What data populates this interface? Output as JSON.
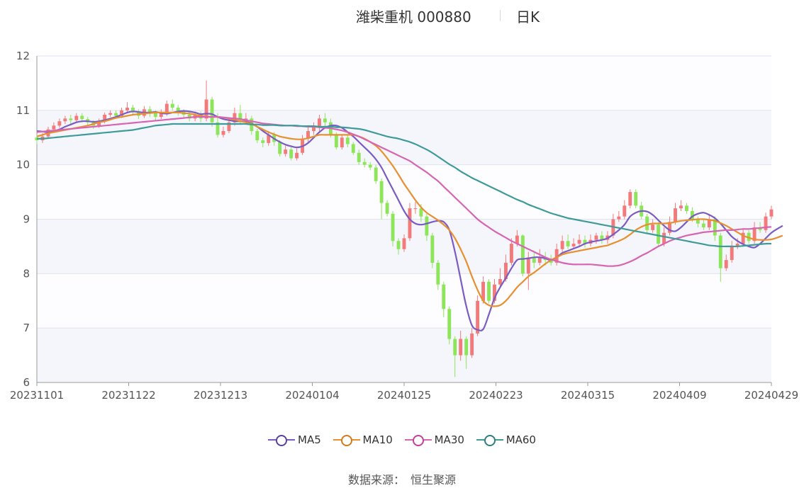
{
  "header": {
    "title": "潍柴重机 000880",
    "period": "日K"
  },
  "colors": {
    "up": "#f37a7a",
    "down": "#8de55a",
    "ma5": "#7a5cc2",
    "ma10": "#e8902f",
    "ma30": "#d765b1",
    "ma60": "#3f9a9a"
  },
  "chart_data": {
    "type": "candlestick",
    "title": "潍柴重机 000880",
    "x_tick_labels": [
      "20231101",
      "20231122",
      "20231213",
      "20240104",
      "20240125",
      "20240223",
      "20240315",
      "20240409",
      "20240429"
    ],
    "y_ticks": [
      6,
      7,
      8,
      9,
      10,
      11,
      12
    ],
    "ylim": [
      6,
      12
    ],
    "grid": true,
    "legend_position": "bottom",
    "candles": [
      [
        10.5,
        10.45,
        10.55,
        10.38
      ],
      [
        10.45,
        10.52,
        10.58,
        10.4
      ],
      [
        10.52,
        10.65,
        10.7,
        10.5
      ],
      [
        10.65,
        10.72,
        10.78,
        10.6
      ],
      [
        10.72,
        10.8,
        10.85,
        10.68
      ],
      [
        10.8,
        10.85,
        10.9,
        10.75
      ],
      [
        10.85,
        10.82,
        10.92,
        10.75
      ],
      [
        10.82,
        10.9,
        10.95,
        10.78
      ],
      [
        10.9,
        10.84,
        10.95,
        10.78
      ],
      [
        10.84,
        10.78,
        10.88,
        10.72
      ],
      [
        10.78,
        10.72,
        10.82,
        10.66
      ],
      [
        10.72,
        10.8,
        10.85,
        10.68
      ],
      [
        10.8,
        10.92,
        10.96,
        10.76
      ],
      [
        10.92,
        10.95,
        11.0,
        10.88
      ],
      [
        10.95,
        10.9,
        11.0,
        10.85
      ],
      [
        10.9,
        11.0,
        11.05,
        10.86
      ],
      [
        11.0,
        11.05,
        11.15,
        10.96
      ],
      [
        11.05,
        10.98,
        11.1,
        10.92
      ],
      [
        10.98,
        10.9,
        11.02,
        10.84
      ],
      [
        10.9,
        11.02,
        11.08,
        10.86
      ],
      [
        11.02,
        10.95,
        11.08,
        10.88
      ],
      [
        10.95,
        10.88,
        11.0,
        10.82
      ],
      [
        10.88,
        10.95,
        11.02,
        10.84
      ],
      [
        10.95,
        11.12,
        11.18,
        10.9
      ],
      [
        11.12,
        11.05,
        11.2,
        11.0
      ],
      [
        11.05,
        10.98,
        11.1,
        10.9
      ],
      [
        10.98,
        10.92,
        11.02,
        10.85
      ],
      [
        10.92,
        10.85,
        10.98,
        10.8
      ],
      [
        10.85,
        10.92,
        10.98,
        10.8
      ],
      [
        10.92,
        10.85,
        10.98,
        10.78
      ],
      [
        10.85,
        11.2,
        11.55,
        10.8
      ],
      [
        11.2,
        10.78,
        11.25,
        10.7
      ],
      [
        10.78,
        10.55,
        10.95,
        10.5
      ],
      [
        10.55,
        10.62,
        10.7,
        10.5
      ],
      [
        10.62,
        10.78,
        10.85,
        10.58
      ],
      [
        10.78,
        10.95,
        11.05,
        10.72
      ],
      [
        10.95,
        10.82,
        11.1,
        10.75
      ],
      [
        10.82,
        10.85,
        10.95,
        10.75
      ],
      [
        10.85,
        10.62,
        10.9,
        10.55
      ],
      [
        10.62,
        10.45,
        10.66,
        10.4
      ],
      [
        10.45,
        10.4,
        10.5,
        10.32
      ],
      [
        10.4,
        10.55,
        10.62,
        10.35
      ],
      [
        10.55,
        10.42,
        10.6,
        10.35
      ],
      [
        10.42,
        10.2,
        10.45,
        10.15
      ],
      [
        10.2,
        10.28,
        10.35,
        10.15
      ],
      [
        10.28,
        10.12,
        10.32,
        10.08
      ],
      [
        10.12,
        10.22,
        10.3,
        10.08
      ],
      [
        10.22,
        10.48,
        10.55,
        10.18
      ],
      [
        10.48,
        10.62,
        10.7,
        10.42
      ],
      [
        10.62,
        10.7,
        10.78,
        10.55
      ],
      [
        10.7,
        10.85,
        10.92,
        10.62
      ],
      [
        10.85,
        10.78,
        10.95,
        10.7
      ],
      [
        10.78,
        10.55,
        10.85,
        10.5
      ],
      [
        10.55,
        10.32,
        10.6,
        10.28
      ],
      [
        10.32,
        10.5,
        10.55,
        10.28
      ],
      [
        10.5,
        10.38,
        10.55,
        10.32
      ],
      [
        10.38,
        10.22,
        10.42,
        10.18
      ],
      [
        10.22,
        10.05,
        10.28,
        10.0
      ],
      [
        10.05,
        10.0,
        10.12,
        9.95
      ],
      [
        10.0,
        9.95,
        10.05,
        9.9
      ],
      [
        9.95,
        9.7,
        10.0,
        9.65
      ],
      [
        9.7,
        9.3,
        9.75,
        9.0
      ],
      [
        9.3,
        9.1,
        9.35,
        9.05
      ],
      [
        9.1,
        8.6,
        9.15,
        8.5
      ],
      [
        8.6,
        8.45,
        8.65,
        8.35
      ],
      [
        8.45,
        8.65,
        8.72,
        8.4
      ],
      [
        8.65,
        9.2,
        9.3,
        8.6
      ],
      [
        9.2,
        9.2,
        9.32,
        9.1
      ],
      [
        9.2,
        9.05,
        9.28,
        8.95
      ],
      [
        9.05,
        8.7,
        9.1,
        8.6
      ],
      [
        8.7,
        8.2,
        8.75,
        8.1
      ],
      [
        8.2,
        7.8,
        8.25,
        7.7
      ],
      [
        7.8,
        7.35,
        7.85,
        7.2
      ],
      [
        7.35,
        6.8,
        7.4,
        6.7
      ],
      [
        6.8,
        6.5,
        6.85,
        6.1
      ],
      [
        6.5,
        6.8,
        6.95,
        6.4
      ],
      [
        6.8,
        6.5,
        6.85,
        6.25
      ],
      [
        6.5,
        6.9,
        7.0,
        6.45
      ],
      [
        6.9,
        7.5,
        7.6,
        6.85
      ],
      [
        7.5,
        7.85,
        7.95,
        7.45
      ],
      [
        7.85,
        7.5,
        7.9,
        7.45
      ],
      [
        7.5,
        7.8,
        7.9,
        7.45
      ],
      [
        7.8,
        7.9,
        8.1,
        7.75
      ],
      [
        7.9,
        8.2,
        8.35,
        7.85
      ],
      [
        8.2,
        8.55,
        8.65,
        8.15
      ],
      [
        8.55,
        8.7,
        8.8,
        8.5
      ],
      [
        8.7,
        8.0,
        8.72,
        7.95
      ],
      [
        8.0,
        8.3,
        8.4,
        7.7
      ],
      [
        8.3,
        8.2,
        8.4,
        8.1
      ],
      [
        8.2,
        8.3,
        8.45,
        8.15
      ],
      [
        8.3,
        8.25,
        8.4,
        8.15
      ],
      [
        8.25,
        8.2,
        8.35,
        8.15
      ],
      [
        8.2,
        8.45,
        8.55,
        8.15
      ],
      [
        8.45,
        8.6,
        8.7,
        8.4
      ],
      [
        8.6,
        8.5,
        8.72,
        8.45
      ],
      [
        8.5,
        8.55,
        8.65,
        8.45
      ],
      [
        8.55,
        8.62,
        8.72,
        8.5
      ],
      [
        8.62,
        8.55,
        8.7,
        8.48
      ],
      [
        8.55,
        8.62,
        8.72,
        8.5
      ],
      [
        8.62,
        8.7,
        8.75,
        8.55
      ],
      [
        8.7,
        8.62,
        8.78,
        8.55
      ],
      [
        8.62,
        8.7,
        8.78,
        8.55
      ],
      [
        8.7,
        9.0,
        9.1,
        8.65
      ],
      [
        9.0,
        9.05,
        9.15,
        8.95
      ],
      [
        9.05,
        9.25,
        9.35,
        9.0
      ],
      [
        9.25,
        9.5,
        9.55,
        9.2
      ],
      [
        9.5,
        9.25,
        9.55,
        9.2
      ],
      [
        9.25,
        9.05,
        9.32,
        9.0
      ],
      [
        9.05,
        8.8,
        9.1,
        8.75
      ],
      [
        8.8,
        8.9,
        9.0,
        8.75
      ],
      [
        8.9,
        8.55,
        8.95,
        8.5
      ],
      [
        8.55,
        8.75,
        8.85,
        8.5
      ],
      [
        8.75,
        8.95,
        9.05,
        8.7
      ],
      [
        8.95,
        9.2,
        9.3,
        8.9
      ],
      [
        9.2,
        9.25,
        9.35,
        9.15
      ],
      [
        9.25,
        9.15,
        9.3,
        9.1
      ],
      [
        9.15,
        9.0,
        9.22,
        8.95
      ],
      [
        9.0,
        8.92,
        9.05,
        8.85
      ],
      [
        8.92,
        8.85,
        9.0,
        8.8
      ],
      [
        8.85,
        9.0,
        9.1,
        8.8
      ],
      [
        9.0,
        8.7,
        9.05,
        8.6
      ],
      [
        8.7,
        8.1,
        8.75,
        7.85
      ],
      [
        8.1,
        8.25,
        8.35,
        8.05
      ],
      [
        8.25,
        8.5,
        8.6,
        8.2
      ],
      [
        8.5,
        8.55,
        8.65,
        8.45
      ],
      [
        8.55,
        8.75,
        8.82,
        8.5
      ],
      [
        8.75,
        8.6,
        8.8,
        8.55
      ],
      [
        8.6,
        8.85,
        8.95,
        8.55
      ],
      [
        8.85,
        8.8,
        8.95,
        8.75
      ],
      [
        8.8,
        9.05,
        9.12,
        8.75
      ],
      [
        9.05,
        9.18,
        9.25,
        9.0
      ]
    ],
    "series": [
      {
        "name": "MA5",
        "values": [
          10.62,
          10.61,
          10.6,
          10.62,
          10.65,
          10.7,
          10.74,
          10.78,
          10.8,
          10.8,
          10.79,
          10.8,
          10.82,
          10.85,
          10.88,
          10.92,
          10.96,
          10.98,
          10.97,
          10.96,
          10.96,
          10.97,
          10.95,
          10.94,
          10.96,
          10.98,
          10.99,
          10.98,
          10.96,
          10.93,
          10.94,
          10.93,
          10.88,
          10.84,
          10.82,
          10.8,
          10.8,
          10.79,
          10.76,
          10.7,
          10.62,
          10.55,
          10.48,
          10.42,
          10.37,
          10.34,
          10.32,
          10.34,
          10.4,
          10.5,
          10.6,
          10.68,
          10.72,
          10.72,
          10.68,
          10.6,
          10.52,
          10.42,
          10.32,
          10.22,
          10.1,
          9.95,
          9.75,
          9.55,
          9.35,
          9.15,
          9.0,
          8.92,
          8.9,
          8.92,
          8.95,
          8.97,
          8.95,
          8.8,
          8.4,
          7.9,
          7.4,
          7.05,
          6.97,
          6.98,
          7.25,
          7.55,
          7.75,
          7.92,
          8.1,
          8.25,
          8.27,
          8.28,
          8.3,
          8.3,
          8.28,
          8.25,
          8.3,
          8.38,
          8.42,
          8.46,
          8.5,
          8.55,
          8.58,
          8.6,
          8.62,
          8.65,
          8.72,
          8.8,
          8.9,
          9.05,
          9.12,
          9.15,
          9.14,
          9.08,
          8.98,
          8.88,
          8.8,
          8.78,
          8.85,
          8.95,
          9.05,
          9.1,
          9.12,
          9.08,
          9.02,
          8.92,
          8.8,
          8.68,
          8.6,
          8.54,
          8.5,
          8.48,
          8.55,
          8.65,
          8.75,
          8.82,
          8.88
        ]
      },
      {
        "name": "MA10",
        "values": [
          10.52,
          10.55,
          10.58,
          10.6,
          10.62,
          10.64,
          10.66,
          10.68,
          10.7,
          10.72,
          10.75,
          10.78,
          10.8,
          10.83,
          10.86,
          10.88,
          10.9,
          10.92,
          10.93,
          10.94,
          10.95,
          10.96,
          10.96,
          10.96,
          10.96,
          10.96,
          10.95,
          10.94,
          10.92,
          10.9,
          10.89,
          10.88,
          10.88,
          10.87,
          10.85,
          10.83,
          10.8,
          10.78,
          10.75,
          10.7,
          10.65,
          10.6,
          10.56,
          10.52,
          10.5,
          10.48,
          10.47,
          10.47,
          10.49,
          10.52,
          10.55,
          10.55,
          10.55,
          10.55,
          10.55,
          10.55,
          10.55,
          10.52,
          10.48,
          10.42,
          10.35,
          10.25,
          10.12,
          9.98,
          9.82,
          9.65,
          9.5,
          9.35,
          9.22,
          9.12,
          9.05,
          8.98,
          8.9,
          8.8,
          8.65,
          8.45,
          8.22,
          7.95,
          7.7,
          7.5,
          7.42,
          7.4,
          7.42,
          7.5,
          7.62,
          7.75,
          7.85,
          7.95,
          8.02,
          8.1,
          8.18,
          8.25,
          8.3,
          8.35,
          8.38,
          8.4,
          8.42,
          8.44,
          8.46,
          8.48,
          8.5,
          8.52,
          8.56,
          8.6,
          8.65,
          8.72,
          8.8,
          8.86,
          8.9,
          8.92,
          8.92,
          8.92,
          8.93,
          8.95,
          8.97,
          8.98,
          8.99,
          9.0,
          9.0,
          8.99,
          8.97,
          8.93,
          8.88,
          8.82,
          8.76,
          8.7,
          8.66,
          8.63,
          8.62,
          8.62,
          8.63,
          8.66,
          8.7
        ]
      },
      {
        "name": "MA30",
        "values": [
          10.6,
          10.61,
          10.62,
          10.63,
          10.64,
          10.65,
          10.66,
          10.67,
          10.68,
          10.69,
          10.7,
          10.71,
          10.72,
          10.73,
          10.74,
          10.75,
          10.76,
          10.77,
          10.78,
          10.79,
          10.8,
          10.81,
          10.82,
          10.83,
          10.84,
          10.85,
          10.86,
          10.87,
          10.88,
          10.88,
          10.88,
          10.88,
          10.88,
          10.87,
          10.86,
          10.85,
          10.84,
          10.82,
          10.8,
          10.78,
          10.76,
          10.75,
          10.74,
          10.73,
          10.72,
          10.72,
          10.71,
          10.71,
          10.7,
          10.7,
          10.69,
          10.68,
          10.67,
          10.65,
          10.63,
          10.6,
          10.56,
          10.52,
          10.47,
          10.42,
          10.37,
          10.32,
          10.27,
          10.22,
          10.17,
          10.12,
          10.07,
          10.0,
          9.93,
          9.86,
          9.78,
          9.7,
          9.6,
          9.5,
          9.4,
          9.3,
          9.2,
          9.1,
          9.0,
          8.92,
          8.85,
          8.78,
          8.72,
          8.66,
          8.6,
          8.55,
          8.5,
          8.45,
          8.4,
          8.35,
          8.3,
          8.26,
          8.23,
          8.2,
          8.18,
          8.17,
          8.17,
          8.17,
          8.17,
          8.16,
          8.15,
          8.14,
          8.14,
          8.15,
          8.18,
          8.22,
          8.27,
          8.33,
          8.38,
          8.44,
          8.5,
          8.55,
          8.6,
          8.64,
          8.67,
          8.7,
          8.72,
          8.74,
          8.76,
          8.77,
          8.78,
          8.79,
          8.8,
          8.8,
          8.81,
          8.82,
          8.82,
          8.83,
          8.84,
          8.85,
          8.86
        ]
      },
      {
        "name": "MA60",
        "values": [
          10.48,
          10.48,
          10.49,
          10.5,
          10.51,
          10.52,
          10.53,
          10.54,
          10.55,
          10.56,
          10.57,
          10.58,
          10.59,
          10.6,
          10.61,
          10.62,
          10.63,
          10.64,
          10.66,
          10.68,
          10.7,
          10.72,
          10.73,
          10.74,
          10.75,
          10.75,
          10.75,
          10.75,
          10.75,
          10.75,
          10.75,
          10.75,
          10.75,
          10.75,
          10.75,
          10.75,
          10.75,
          10.75,
          10.74,
          10.74,
          10.73,
          10.73,
          10.73,
          10.72,
          10.72,
          10.72,
          10.72,
          10.71,
          10.71,
          10.71,
          10.7,
          10.7,
          10.7,
          10.69,
          10.69,
          10.68,
          10.67,
          10.66,
          10.64,
          10.61,
          10.58,
          10.55,
          10.52,
          10.5,
          10.48,
          10.45,
          10.42,
          10.38,
          10.33,
          10.28,
          10.22,
          10.15,
          10.08,
          10.01,
          9.95,
          9.88,
          9.82,
          9.76,
          9.71,
          9.66,
          9.61,
          9.56,
          9.51,
          9.46,
          9.41,
          9.36,
          9.32,
          9.27,
          9.23,
          9.19,
          9.15,
          9.11,
          9.08,
          9.05,
          9.02,
          9.0,
          8.98,
          8.96,
          8.94,
          8.92,
          8.9,
          8.88,
          8.86,
          8.84,
          8.82,
          8.8,
          8.78,
          8.76,
          8.74,
          8.72,
          8.7,
          8.68,
          8.66,
          8.64,
          8.62,
          8.6,
          8.58,
          8.56,
          8.54,
          8.52,
          8.51,
          8.5,
          8.5,
          8.5,
          8.5,
          8.51,
          8.52,
          8.53,
          8.54,
          8.55,
          8.55
        ]
      }
    ]
  },
  "legend": {
    "ma5": "MA5",
    "ma10": "MA10",
    "ma30": "MA30",
    "ma60": "MA60"
  },
  "footer": {
    "source_label": "数据来源：",
    "source_name": "恒生聚源"
  }
}
